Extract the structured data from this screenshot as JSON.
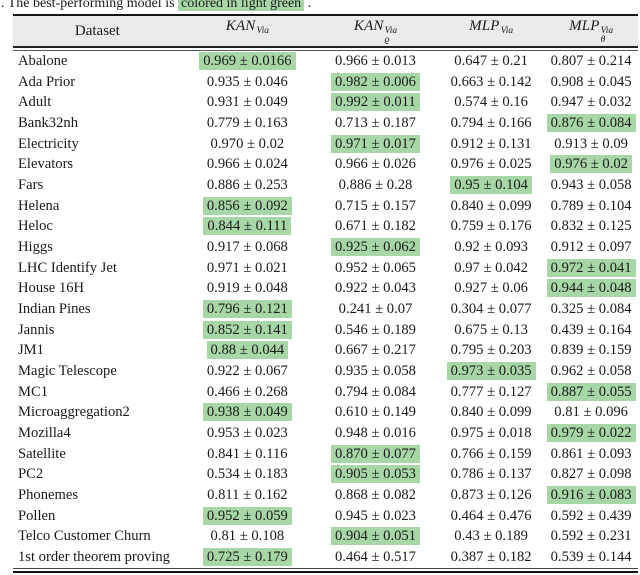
{
  "caption": {
    "prefix": ". The best-performing model is ",
    "highlight": "colored in light green",
    "suffix": " ."
  },
  "colors": {
    "highlight_green": "#a7d7a7",
    "header_bg": "#ebebeb"
  },
  "table": {
    "columns": [
      {
        "label": "Dataset",
        "base": "Dataset",
        "sub": "",
        "sup": ""
      },
      {
        "label": "KAN^Via",
        "base": "KAN",
        "sub": "",
        "sup": "Via"
      },
      {
        "label": "KAN_rho^Via",
        "base": "KAN",
        "sub": "ϱ",
        "sup": "Via"
      },
      {
        "label": "MLP^Via",
        "base": "MLP",
        "sub": "",
        "sup": "Via"
      },
      {
        "label": "MLP_theta^Via",
        "base": "MLP",
        "sub": "θ",
        "sup": "Via"
      }
    ],
    "rows": [
      {
        "dataset": "Abalone",
        "values": [
          {
            "text": "0.969 ± 0.0166",
            "highlight": true
          },
          {
            "text": "0.966 ± 0.013",
            "highlight": false
          },
          {
            "text": "0.647 ± 0.21",
            "highlight": false
          },
          {
            "text": "0.807 ± 0.214",
            "highlight": false
          }
        ]
      },
      {
        "dataset": "Ada Prior",
        "values": [
          {
            "text": "0.935 ± 0.046",
            "highlight": false
          },
          {
            "text": "0.982 ± 0.006",
            "highlight": true
          },
          {
            "text": "0.663 ± 0.142",
            "highlight": false
          },
          {
            "text": "0.908 ± 0.045",
            "highlight": false
          }
        ]
      },
      {
        "dataset": "Adult",
        "values": [
          {
            "text": "0.931 ± 0.049",
            "highlight": false
          },
          {
            "text": "0.992 ± 0.011",
            "highlight": true
          },
          {
            "text": "0.574 ± 0.16",
            "highlight": false
          },
          {
            "text": "0.947 ± 0.032",
            "highlight": false
          }
        ]
      },
      {
        "dataset": "Bank32nh",
        "values": [
          {
            "text": "0.779 ± 0.163",
            "highlight": false
          },
          {
            "text": "0.713 ± 0.187",
            "highlight": false
          },
          {
            "text": "0.794 ± 0.166",
            "highlight": false
          },
          {
            "text": "0.876 ± 0.084",
            "highlight": true
          }
        ]
      },
      {
        "dataset": "Electricity",
        "values": [
          {
            "text": "0.970 ± 0.02",
            "highlight": false
          },
          {
            "text": "0.971 ± 0.017",
            "highlight": true
          },
          {
            "text": "0.912 ± 0.131",
            "highlight": false
          },
          {
            "text": "0.913 ± 0.09",
            "highlight": false
          }
        ]
      },
      {
        "dataset": "Elevators",
        "values": [
          {
            "text": "0.966 ± 0.024",
            "highlight": false
          },
          {
            "text": "0.966 ± 0.026",
            "highlight": false
          },
          {
            "text": "0.976 ± 0.025",
            "highlight": false
          },
          {
            "text": "0.976 ± 0.02",
            "highlight": true
          }
        ]
      },
      {
        "dataset": "Fars",
        "values": [
          {
            "text": "0.886 ± 0.253",
            "highlight": false
          },
          {
            "text": "0.886 ± 0.28",
            "highlight": false
          },
          {
            "text": "0.95 ± 0.104",
            "highlight": true
          },
          {
            "text": "0.943 ± 0.058",
            "highlight": false
          }
        ]
      },
      {
        "dataset": "Helena",
        "values": [
          {
            "text": "0.856 ± 0.092",
            "highlight": true
          },
          {
            "text": "0.715 ± 0.157",
            "highlight": false
          },
          {
            "text": "0.840 ± 0.099",
            "highlight": false
          },
          {
            "text": "0.789 ± 0.104",
            "highlight": false
          }
        ]
      },
      {
        "dataset": "Heloc",
        "values": [
          {
            "text": "0.844 ± 0.111",
            "highlight": true
          },
          {
            "text": "0.671 ± 0.182",
            "highlight": false
          },
          {
            "text": "0.759 ± 0.176",
            "highlight": false
          },
          {
            "text": "0.832 ± 0.125",
            "highlight": false
          }
        ]
      },
      {
        "dataset": "Higgs",
        "values": [
          {
            "text": "0.917 ± 0.068",
            "highlight": false
          },
          {
            "text": "0.925 ± 0.062",
            "highlight": true
          },
          {
            "text": "0.92 ± 0.093",
            "highlight": false
          },
          {
            "text": "0.912 ± 0.097",
            "highlight": false
          }
        ]
      },
      {
        "dataset": "LHC Identify Jet",
        "values": [
          {
            "text": "0.971 ± 0.021",
            "highlight": false
          },
          {
            "text": "0.952 ± 0.065",
            "highlight": false
          },
          {
            "text": "0.97 ± 0.042",
            "highlight": false
          },
          {
            "text": "0.972 ± 0.041",
            "highlight": true
          }
        ]
      },
      {
        "dataset": "House 16H",
        "values": [
          {
            "text": "0.919 ± 0.048",
            "highlight": false
          },
          {
            "text": "0.922 ± 0.043",
            "highlight": false
          },
          {
            "text": "0.927 ± 0.06",
            "highlight": false
          },
          {
            "text": "0.944 ± 0.048",
            "highlight": true
          }
        ]
      },
      {
        "dataset": "Indian Pines",
        "values": [
          {
            "text": "0.796 ± 0.121",
            "highlight": true
          },
          {
            "text": "0.241 ± 0.07",
            "highlight": false
          },
          {
            "text": "0.304 ± 0.077",
            "highlight": false
          },
          {
            "text": "0.325 ± 0.084",
            "highlight": false
          }
        ]
      },
      {
        "dataset": "Jannis",
        "values": [
          {
            "text": "0.852 ± 0.141",
            "highlight": true
          },
          {
            "text": "0.546 ± 0.189",
            "highlight": false
          },
          {
            "text": "0.675 ± 0.13",
            "highlight": false
          },
          {
            "text": "0.439 ± 0.164",
            "highlight": false
          }
        ]
      },
      {
        "dataset": "JM1",
        "values": [
          {
            "text": "0.88 ± 0.044",
            "highlight": true
          },
          {
            "text": "0.667 ± 0.217",
            "highlight": false
          },
          {
            "text": "0.795 ± 0.203",
            "highlight": false
          },
          {
            "text": "0.839 ± 0.159",
            "highlight": false
          }
        ]
      },
      {
        "dataset": "Magic Telescope",
        "values": [
          {
            "text": "0.922 ± 0.067",
            "highlight": false
          },
          {
            "text": "0.935 ± 0.058",
            "highlight": false
          },
          {
            "text": "0.973 ± 0.035",
            "highlight": true
          },
          {
            "text": "0.962 ± 0.058",
            "highlight": false
          }
        ]
      },
      {
        "dataset": "MC1",
        "values": [
          {
            "text": "0.466 ± 0.268",
            "highlight": false
          },
          {
            "text": "0.794 ± 0.084",
            "highlight": false
          },
          {
            "text": "0.777 ± 0.127",
            "highlight": false
          },
          {
            "text": "0.887 ± 0.055",
            "highlight": true
          }
        ]
      },
      {
        "dataset": "Microaggregation2",
        "values": [
          {
            "text": "0.938 ± 0.049",
            "highlight": true
          },
          {
            "text": "0.610 ± 0.149",
            "highlight": false
          },
          {
            "text": "0.840 ± 0.099",
            "highlight": false
          },
          {
            "text": "0.81 ± 0.096",
            "highlight": false
          }
        ]
      },
      {
        "dataset": "Mozilla4",
        "values": [
          {
            "text": "0.953 ± 0.023",
            "highlight": false
          },
          {
            "text": "0.948 ± 0.016",
            "highlight": false
          },
          {
            "text": "0.975 ± 0.018",
            "highlight": false
          },
          {
            "text": "0.979 ± 0.022",
            "highlight": true
          }
        ]
      },
      {
        "dataset": "Satellite",
        "values": [
          {
            "text": "0.841 ± 0.116",
            "highlight": false
          },
          {
            "text": "0.870 ± 0.077",
            "highlight": true
          },
          {
            "text": "0.766 ± 0.159",
            "highlight": false
          },
          {
            "text": "0.861 ± 0.093",
            "highlight": false
          }
        ]
      },
      {
        "dataset": "PC2",
        "values": [
          {
            "text": "0.534 ± 0.183",
            "highlight": false
          },
          {
            "text": "0.905 ± 0.053",
            "highlight": true
          },
          {
            "text": "0.786 ± 0.137",
            "highlight": false
          },
          {
            "text": "0.827 ± 0.098",
            "highlight": false
          }
        ]
      },
      {
        "dataset": "Phonemes",
        "values": [
          {
            "text": "0.811 ± 0.162",
            "highlight": false
          },
          {
            "text": "0.868 ± 0.082",
            "highlight": false
          },
          {
            "text": "0.873 ± 0.126",
            "highlight": false
          },
          {
            "text": "0.916 ± 0.083",
            "highlight": true
          }
        ]
      },
      {
        "dataset": "Pollen",
        "values": [
          {
            "text": "0.952 ± 0.059",
            "highlight": true
          },
          {
            "text": "0.945 ± 0.023",
            "highlight": false
          },
          {
            "text": "0.464 ± 0.476",
            "highlight": false
          },
          {
            "text": "0.592 ± 0.439",
            "highlight": false
          }
        ]
      },
      {
        "dataset": "Telco Customer Churn",
        "values": [
          {
            "text": "0.81 ± 0.108",
            "highlight": false
          },
          {
            "text": "0.904 ± 0.051",
            "highlight": true
          },
          {
            "text": "0.43 ± 0.189",
            "highlight": false
          },
          {
            "text": "0.592 ± 0.231",
            "highlight": false
          }
        ]
      },
      {
        "dataset": "1st order theorem proving",
        "values": [
          {
            "text": "0.725 ± 0.179",
            "highlight": true
          },
          {
            "text": "0.464 ± 0.517",
            "highlight": false
          },
          {
            "text": "0.387 ± 0.182",
            "highlight": false
          },
          {
            "text": "0.539 ± 0.144",
            "highlight": false
          }
        ]
      }
    ]
  }
}
